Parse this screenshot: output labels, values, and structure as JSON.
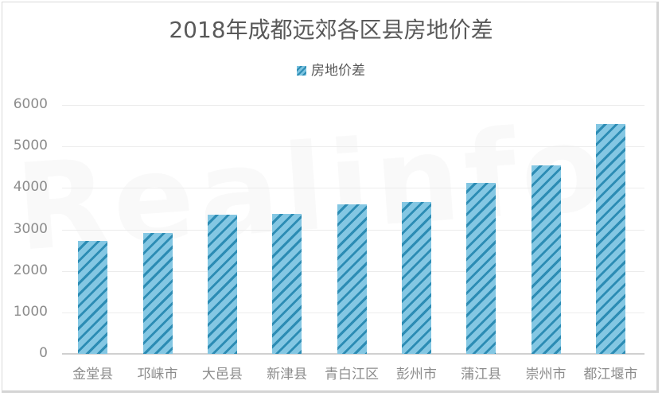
{
  "chart_data": {
    "type": "bar",
    "title": "2018年成都远郊各区县房地价差",
    "legend": [
      "房地价差"
    ],
    "legend_position": "top",
    "xlabel": "",
    "ylabel": "",
    "ylim": [
      0,
      6000
    ],
    "yticks": [
      0,
      1000,
      2000,
      3000,
      4000,
      5000,
      6000
    ],
    "grid": true,
    "categories": [
      "金堂县",
      "邛崃市",
      "大邑县",
      "新津县",
      "青白江区",
      "彭州市",
      "蒲江县",
      "崇州市",
      "都江堰市"
    ],
    "series": [
      {
        "name": "房地价差",
        "values": [
          2730,
          2910,
          3350,
          3370,
          3600,
          3660,
          4120,
          4540,
          5540
        ],
        "color": "#4fa8cf"
      }
    ]
  },
  "watermark": "Realinfo"
}
